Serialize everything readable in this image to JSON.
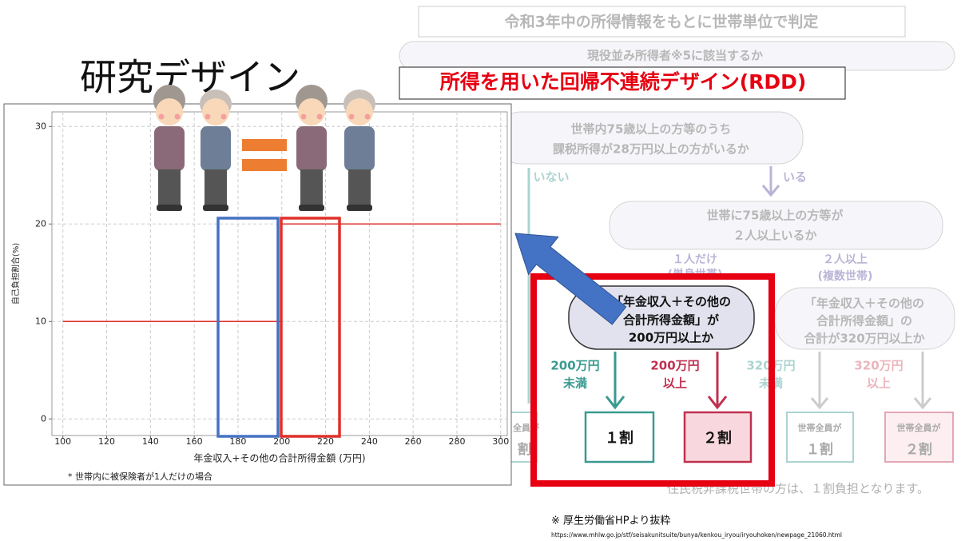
{
  "slide_title": "研究デザイン",
  "rdd_label": "所得を用いた回帰不連続デザイン(RDD)",
  "chart_data": {
    "type": "line",
    "x": [
      100,
      200,
      200,
      300
    ],
    "values": [
      10,
      10,
      20,
      20
    ],
    "color": "#e0302a",
    "xlim": [
      95,
      303
    ],
    "ylim": [
      -1.7,
      31.5
    ],
    "xticks": [
      100,
      120,
      140,
      160,
      180,
      200,
      220,
      240,
      260,
      280,
      300
    ],
    "yticks": [
      0,
      10,
      20,
      30
    ],
    "grid": true,
    "xlabel": "年金収入+その他の合計所得金額 (万円)",
    "ylabel": "自己負担割合(%)",
    "note": "* 世帯内に被保険者が1人だけの場合"
  },
  "flowchart": {
    "header": "令和3年中の所得情報をもとに世帯単位で判定",
    "q1": "現役並み所得者※5に該当するか",
    "q2": [
      "世帯内75歳以上の方等のうち",
      "課税所得が28万円以上の方がいるか"
    ],
    "no": "いない",
    "yes": "いる",
    "q3": [
      "世帯に75歳以上の方等が",
      "２人以上いるか"
    ],
    "single": [
      "１人だけ",
      "(単身世帯)"
    ],
    "multi": [
      "２人以上",
      "(複数世帯)"
    ],
    "q4": [
      "「年金収入＋その他の",
      "合計所得金額」が",
      "200万円以上か"
    ],
    "q5": [
      "「年金収入＋その他の",
      "合計所得金額」の",
      "合計が320万円以上か"
    ],
    "b1": [
      "200万円",
      "未満"
    ],
    "b2": [
      "200万円",
      "以上"
    ],
    "b3": [
      "320万円",
      "未満"
    ],
    "b4": [
      "320万円",
      "以上"
    ],
    "left_box": [
      "全員が",
      "割"
    ],
    "r1": "１割",
    "r2": "２割",
    "r3": [
      "世帯全員が",
      "１割"
    ],
    "r4": [
      "世帯全員が",
      "２割"
    ],
    "footnote": "住民税非課税世帯の方は、１割負担となります。"
  },
  "source": "※ 厚生労働省HPより抜粋",
  "url": "https://www.mhlw.go.jp/stf/seisakunitsuite/bunya/kenkou_iryou/iryouhoken/newpage_21060.html"
}
